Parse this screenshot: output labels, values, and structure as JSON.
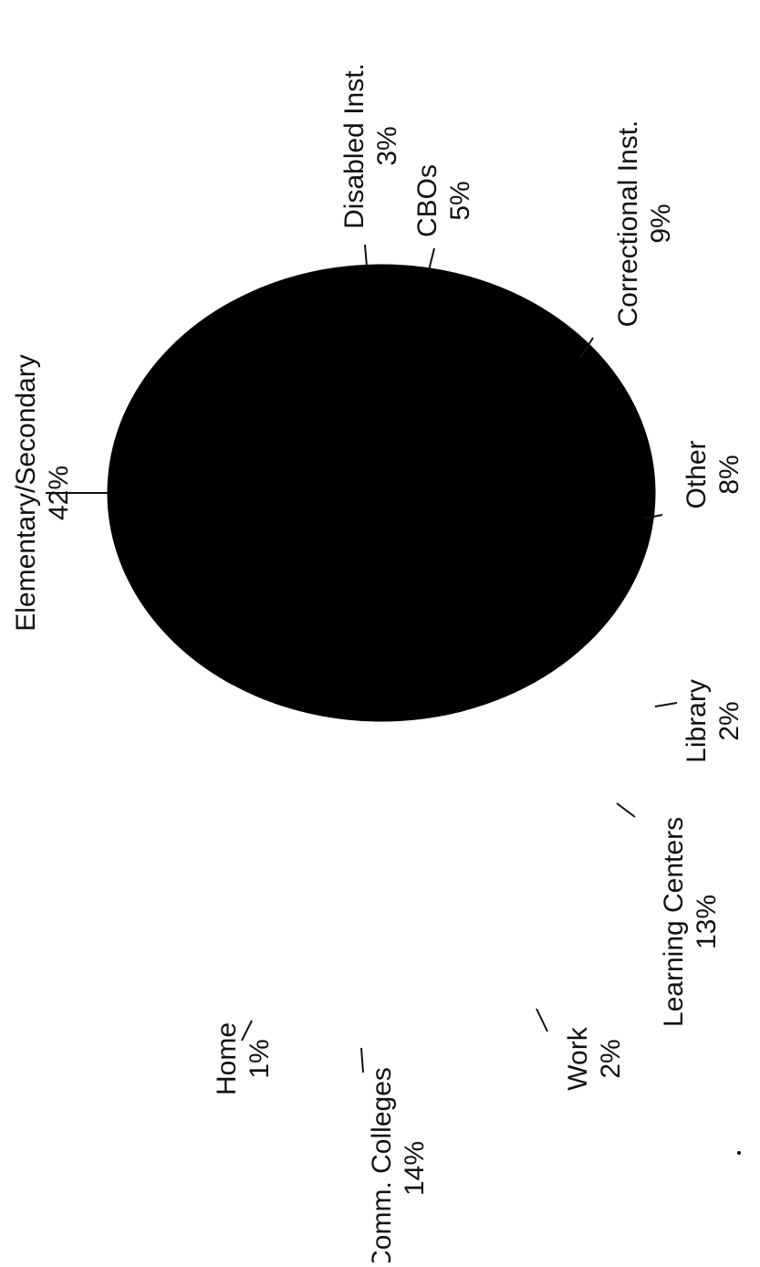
{
  "chart_data": {
    "type": "pie",
    "title": "",
    "orientation": "rotated 90 degrees counter-clockwise",
    "slice_fill": "#000000",
    "background": "#ffffff",
    "slices": [
      {
        "label": "Elementary/Secondary",
        "value": 42,
        "value_label": "42%"
      },
      {
        "label": "Disabled Inst.",
        "value": 3,
        "value_label": "3%"
      },
      {
        "label": "CBOs",
        "value": 5,
        "value_label": "5%"
      },
      {
        "label": "Correctional Inst.",
        "value": 9,
        "value_label": "9%"
      },
      {
        "label": "Other",
        "value": 8,
        "value_label": "8%"
      },
      {
        "label": "Library",
        "value": 2,
        "value_label": "2%"
      },
      {
        "label": "Learning Centers",
        "value": 13,
        "value_label": "13%"
      },
      {
        "label": "Work",
        "value": 2,
        "value_label": "2%"
      },
      {
        "label": "Comm. Colleges",
        "value": 14,
        "value_label": "14%"
      },
      {
        "label": "Home",
        "value": 1,
        "value_label": "1%"
      }
    ]
  }
}
